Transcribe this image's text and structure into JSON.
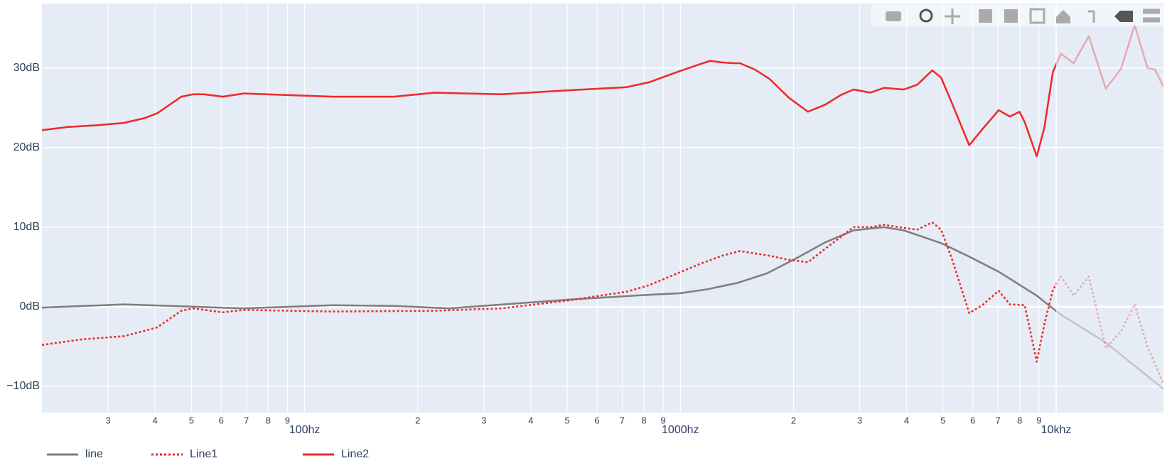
{
  "chart_data": {
    "type": "line",
    "xscale": "log",
    "grid": true,
    "legend": "bottom-left",
    "fade_from": 10000,
    "xlim": [
      20,
      19300
    ],
    "ylim": [
      -13.3,
      38.1
    ],
    "xticks": [
      {
        "value": 30,
        "label": "3"
      },
      {
        "value": 40,
        "label": "4"
      },
      {
        "value": 50,
        "label": "5"
      },
      {
        "value": 60,
        "label": "6"
      },
      {
        "value": 70,
        "label": "7"
      },
      {
        "value": 80,
        "label": "8"
      },
      {
        "value": 90,
        "label": "9"
      },
      {
        "value": 100,
        "label": "100hz"
      },
      {
        "value": 200,
        "label": "2"
      },
      {
        "value": 300,
        "label": "3"
      },
      {
        "value": 400,
        "label": "4"
      },
      {
        "value": 500,
        "label": "5"
      },
      {
        "value": 600,
        "label": "6"
      },
      {
        "value": 700,
        "label": "7"
      },
      {
        "value": 800,
        "label": "8"
      },
      {
        "value": 900,
        "label": "9"
      },
      {
        "value": 1000,
        "label": "1000hz"
      },
      {
        "value": 2000,
        "label": "2"
      },
      {
        "value": 3000,
        "label": "3"
      },
      {
        "value": 4000,
        "label": "4"
      },
      {
        "value": 5000,
        "label": "5"
      },
      {
        "value": 6000,
        "label": "6"
      },
      {
        "value": 7000,
        "label": "7"
      },
      {
        "value": 8000,
        "label": "8"
      },
      {
        "value": 9000,
        "label": "9"
      },
      {
        "value": 10000,
        "label": "10khz"
      }
    ],
    "yticks": [
      {
        "value": -10,
        "label": "−10dB"
      },
      {
        "value": 0,
        "label": "0dB"
      },
      {
        "value": 10,
        "label": "10dB"
      },
      {
        "value": 20,
        "label": "20dB"
      },
      {
        "value": 30,
        "label": "30dB"
      }
    ],
    "series": [
      {
        "name": "line",
        "color": "#7f7f7f",
        "dash": "solid",
        "x": [
          20,
          33,
          69,
          119,
          173,
          243,
          505,
          825,
          1000,
          1180,
          1420,
          1700,
          2000,
          2430,
          2890,
          3480,
          3930,
          4940,
          5870,
          7030,
          8880,
          10290,
          13560,
          19270
        ],
        "values": [
          -0.1,
          0.3,
          -0.2,
          0.2,
          0.1,
          -0.2,
          0.9,
          1.5,
          1.7,
          2.2,
          3.0,
          4.2,
          5.9,
          8.1,
          9.6,
          10.0,
          9.6,
          8.0,
          6.3,
          4.4,
          1.4,
          -1.0,
          -4.5,
          -10.3
        ]
      },
      {
        "name": "Line1",
        "color": "#ee2a2a",
        "dash": "dot",
        "x": [
          20,
          25.5,
          33,
          40.5,
          47,
          50.5,
          60.5,
          69,
          119,
          222,
          335,
          505,
          720,
          825,
          1130,
          1290,
          1440,
          1730,
          1940,
          2185,
          2430,
          2890,
          3200,
          3480,
          3930,
          4270,
          4680,
          4940,
          5290,
          5870,
          6360,
          7030,
          7530,
          8250,
          8880,
          9300,
          9800,
          10290,
          11130,
          12210,
          13560,
          14880,
          16180,
          17500,
          19270
        ],
        "values": [
          -4.8,
          -4.1,
          -3.7,
          -2.6,
          -0.5,
          -0.2,
          -0.7,
          -0.4,
          -0.6,
          -0.5,
          -0.2,
          0.8,
          1.9,
          2.7,
          5.4,
          6.4,
          7.0,
          6.4,
          5.9,
          5.6,
          7.3,
          10.0,
          10.0,
          10.3,
          9.9,
          9.7,
          10.6,
          9.7,
          5.9,
          -0.8,
          0.2,
          2.0,
          0.3,
          0.2,
          -6.9,
          -2.2,
          2.1,
          3.8,
          1.4,
          3.8,
          -5.2,
          -3.1,
          0.3,
          -5.0,
          -9.6
        ]
      },
      {
        "name": "Line2",
        "color": "#ee2a2a",
        "dash": "solid",
        "x": [
          20,
          23.5,
          27.8,
          33,
          37.5,
          40.5,
          47,
          50.5,
          54,
          60.5,
          69,
          119,
          173,
          222,
          335,
          505,
          720,
          825,
          980,
          1130,
          1200,
          1290,
          1380,
          1440,
          1580,
          1730,
          1940,
          2185,
          2430,
          2670,
          2890,
          3200,
          3480,
          3930,
          4270,
          4680,
          4940,
          5290,
          5870,
          6360,
          7030,
          7530,
          7990,
          8250,
          8880,
          9300,
          9800,
          10290,
          11130,
          12210,
          13560,
          14880,
          16180,
          17500,
          18340,
          19270
        ],
        "values": [
          22.2,
          22.6,
          22.8,
          23.1,
          23.7,
          24.3,
          26.4,
          26.7,
          26.7,
          26.4,
          26.8,
          26.4,
          26.4,
          26.9,
          26.7,
          27.2,
          27.6,
          28.2,
          29.5,
          30.5,
          30.9,
          30.7,
          30.6,
          30.6,
          29.8,
          28.6,
          26.3,
          24.5,
          25.4,
          26.6,
          27.3,
          26.9,
          27.5,
          27.3,
          27.9,
          29.7,
          28.8,
          25.5,
          20.3,
          22.3,
          24.7,
          23.9,
          24.5,
          23.2,
          18.9,
          22.5,
          29.5,
          31.8,
          30.6,
          34.0,
          27.4,
          29.9,
          35.4,
          30.0,
          29.8,
          27.7
        ]
      }
    ]
  }
}
